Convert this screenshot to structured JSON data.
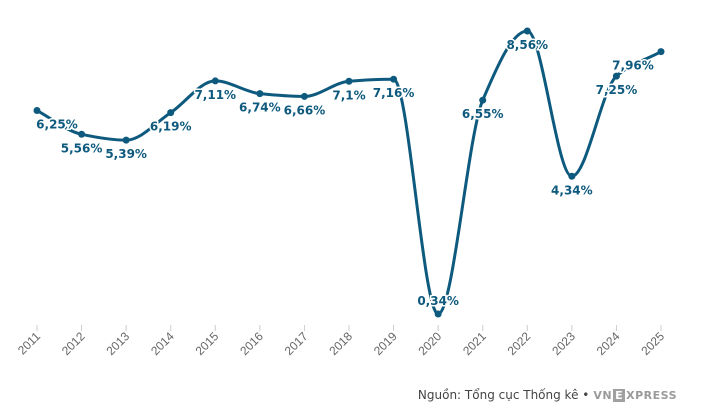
{
  "chart_data": {
    "type": "line",
    "categories": [
      "2011",
      "2012",
      "2013",
      "2014",
      "2015",
      "2016",
      "2017",
      "2018",
      "2019",
      "2020",
      "2021",
      "2022",
      "2023",
      "2024",
      "2025"
    ],
    "series": [
      {
        "values": [
          6.25,
          5.56,
          5.39,
          6.19,
          7.11,
          6.74,
          6.66,
          7.1,
          7.16,
          0.34,
          6.55,
          8.56,
          4.34,
          7.25,
          7.96
        ],
        "labels": [
          "6,25%",
          "5,56%",
          "5,39%",
          "6,19%",
          "7,11%",
          "6,74%",
          "6,66%",
          "7,1%",
          "7,16%",
          "0,34%",
          "6,55%",
          "8,56%",
          "4,34%",
          "7,25%",
          "7,96%"
        ]
      }
    ],
    "label_positions": [
      "below",
      "below",
      "below",
      "below",
      "below",
      "below",
      "below",
      "below",
      "below",
      "above",
      "below",
      "below",
      "below",
      "below",
      "below"
    ],
    "colors": {
      "line": "#0e5a7e",
      "label": "#0e5a7e",
      "tick": "#666666"
    },
    "grid": false,
    "legend": "none"
  },
  "footer": {
    "source_text": "Nguồn: Tổng cục Thống kê •",
    "logo_left": "VN",
    "logo_box": "E",
    "logo_right": "XPRESS"
  }
}
